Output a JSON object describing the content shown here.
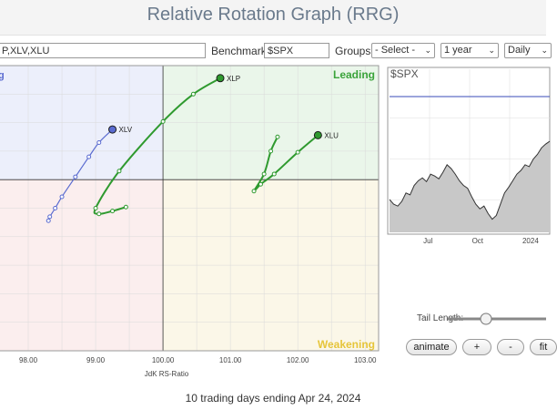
{
  "header": {
    "title": "Relative Rotation Graph (RRG)"
  },
  "controls": {
    "symbols_value": "P,XLV,XLU",
    "benchmark_label": "Benchmark:",
    "benchmark_value": "$SPX",
    "groups_label": "Groups:",
    "groups_value": "- Select -",
    "period_value": "1 year",
    "frequency_value": "Daily"
  },
  "quadrants": {
    "leading": "Leading",
    "weakening": "Weakening",
    "improving_partial": "g"
  },
  "chart_data": [
    {
      "type": "scatter",
      "title": "Relative Rotation Graph (RRG)",
      "xlabel": "JdK RS-Ratio",
      "ylabel": "",
      "xlim": [
        97.5,
        103.2
      ],
      "ylim": [
        97.0,
        102.0
      ],
      "x_ticks": [
        "98.00",
        "99.00",
        "100.00",
        "101.00",
        "102.00",
        "103.00"
      ],
      "x_tick_values": [
        98,
        99,
        100,
        101,
        102,
        103
      ],
      "center": [
        100,
        100
      ],
      "grid": true,
      "series": [
        {
          "name": "XLV",
          "color": "#5a6bd0",
          "tail": [
            [
              98.3,
              99.28
            ],
            [
              98.32,
              99.35
            ],
            [
              98.4,
              99.5
            ],
            [
              98.5,
              99.7
            ],
            [
              98.7,
              100.05
            ],
            [
              98.9,
              100.4
            ],
            [
              99.05,
              100.65
            ],
            [
              99.25,
              100.88
            ]
          ]
        },
        {
          "name": "XLP",
          "color": "#2f9a2f",
          "tail": [
            [
              99.45,
              99.52
            ],
            [
              99.25,
              99.45
            ],
            [
              99.05,
              99.4
            ],
            [
              99.0,
              99.5
            ],
            [
              99.35,
              100.15
            ],
            [
              100.0,
              101.02
            ],
            [
              100.45,
              101.5
            ],
            [
              100.85,
              101.78
            ]
          ]
        },
        {
          "name": "XLU",
          "color": "#2f9a2f",
          "tail": [
            [
              101.7,
              100.75
            ],
            [
              101.6,
              100.5
            ],
            [
              101.5,
              100.1
            ],
            [
              101.35,
              99.8
            ],
            [
              101.45,
              99.92
            ],
            [
              101.65,
              100.1
            ],
            [
              102.0,
              100.48
            ],
            [
              102.3,
              100.78
            ]
          ]
        }
      ]
    },
    {
      "type": "area",
      "title": "$SPX",
      "x_ticks": [
        "Jul",
        "Oct",
        "2024"
      ],
      "color": "#333333",
      "fill": "#c8c8c8",
      "reference_line": "#3a4bb8",
      "values": [
        0.35,
        0.3,
        0.28,
        0.33,
        0.42,
        0.4,
        0.5,
        0.55,
        0.58,
        0.54,
        0.62,
        0.6,
        0.57,
        0.64,
        0.72,
        0.68,
        0.62,
        0.55,
        0.5,
        0.47,
        0.38,
        0.3,
        0.25,
        0.28,
        0.2,
        0.14,
        0.18,
        0.3,
        0.42,
        0.48,
        0.55,
        0.62,
        0.66,
        0.72,
        0.7,
        0.78,
        0.83,
        0.9,
        0.94,
        0.97
      ]
    }
  ],
  "side_chart": {
    "title": "$SPX",
    "x_ticks": [
      "Jul",
      "Oct",
      "2024"
    ]
  },
  "tail": {
    "label": "Tail Length:"
  },
  "buttons": {
    "animate": "animate",
    "plus": "+",
    "minus": "-",
    "fit": "fit"
  },
  "footer": {
    "text": "10 trading days ending Apr 24, 2024"
  }
}
